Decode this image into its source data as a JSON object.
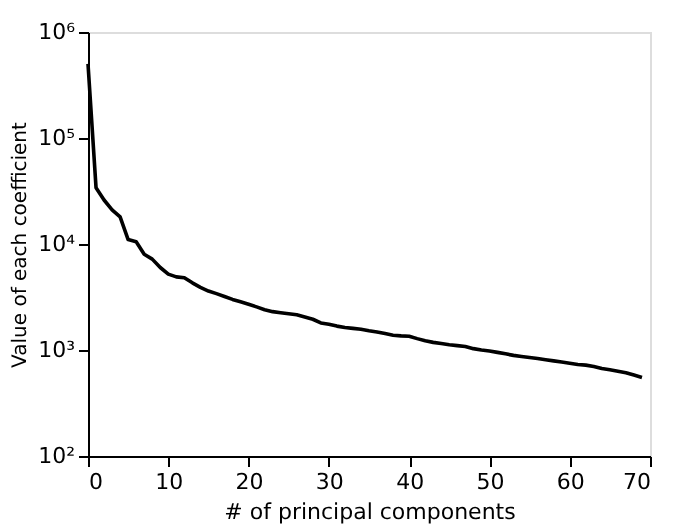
{
  "chart_data": {
    "type": "line",
    "xlabel": "# of principal components",
    "ylabel": "Value of each coefficient",
    "x": [
      0,
      1,
      2,
      3,
      4,
      5,
      6,
      7,
      8,
      9,
      10,
      11,
      12,
      13,
      14,
      15,
      16,
      17,
      18,
      19,
      20,
      21,
      22,
      23,
      24,
      25,
      26,
      27,
      28,
      29,
      30,
      31,
      32,
      33,
      34,
      35,
      36,
      37,
      38,
      39,
      40,
      41,
      42,
      43,
      44,
      45,
      46,
      47,
      48,
      49,
      50,
      51,
      52,
      53,
      54,
      55,
      56,
      57,
      58,
      59,
      60,
      61,
      62,
      63,
      64,
      65,
      66,
      67,
      68,
      69
    ],
    "series": [
      {
        "color": "#000000",
        "values": [
          500000,
          34000,
          26000,
          21000,
          18000,
          11000,
          10500,
          8000,
          7200,
          6000,
          5200,
          4900,
          4800,
          4300,
          3900,
          3600,
          3400,
          3200,
          3000,
          2850,
          2700,
          2550,
          2400,
          2300,
          2250,
          2200,
          2150,
          2050,
          1950,
          1800,
          1750,
          1680,
          1630,
          1600,
          1570,
          1520,
          1480,
          1430,
          1380,
          1360,
          1350,
          1280,
          1220,
          1180,
          1150,
          1120,
          1100,
          1080,
          1030,
          1000,
          980,
          950,
          920,
          890,
          870,
          850,
          830,
          810,
          790,
          770,
          750,
          730,
          720,
          700,
          670,
          650,
          630,
          610,
          580,
          550
        ]
      }
    ],
    "xlim": [
      0,
      70
    ],
    "xticks": [
      0,
      10,
      20,
      30,
      40,
      50,
      60,
      70
    ],
    "ylim": [
      100,
      1000000
    ],
    "yticks": [
      {
        "value": 100,
        "label": "10²"
      },
      {
        "value": 1000,
        "label": "10³"
      },
      {
        "value": 10000,
        "label": "10⁴"
      },
      {
        "value": 100000,
        "label": "10⁵"
      },
      {
        "value": 1000000,
        "label": "10⁶"
      }
    ],
    "log": true,
    "grid": false,
    "marker": "none",
    "line_style": "solid"
  }
}
